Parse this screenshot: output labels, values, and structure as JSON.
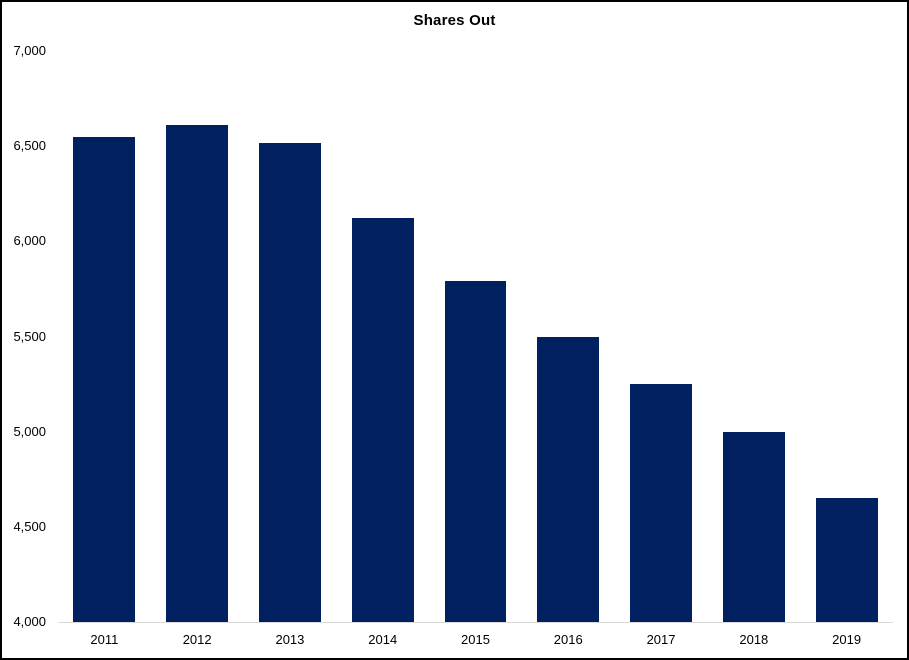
{
  "window": {
    "background_color": "#ffffff",
    "frame_color": "#000000"
  },
  "chart_data": {
    "type": "bar",
    "title": "Shares Out",
    "categories": [
      "2011",
      "2012",
      "2013",
      "2014",
      "2015",
      "2016",
      "2017",
      "2018",
      "2019"
    ],
    "values": [
      6550,
      6610,
      6515,
      6120,
      5790,
      5500,
      5250,
      5000,
      4650
    ],
    "xlabel": "",
    "ylabel": "",
    "ylim": [
      4000,
      7000
    ],
    "ytick_step": 500,
    "ytick_labels": [
      "7,000",
      "6,500",
      "6,000",
      "5,500",
      "5,000",
      "4,500",
      "4,000"
    ],
    "grid": false,
    "legend": false,
    "bar_color": "#002060",
    "axis_line_color": "#d9d9d9",
    "text_color": "#000000"
  }
}
